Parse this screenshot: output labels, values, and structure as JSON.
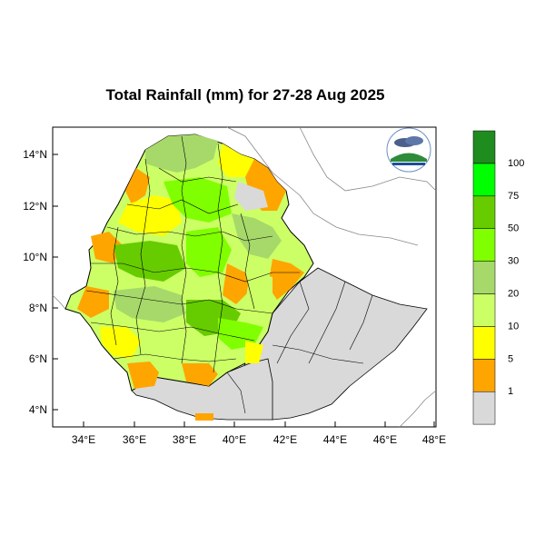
{
  "title": "Total Rainfall (mm) for 27-28 Aug 2025",
  "map": {
    "lon_range": [
      33,
      48.2
    ],
    "lat_range": [
      3.2,
      15
    ],
    "y_ticks": [
      "14°N",
      "12°N",
      "10°N",
      "8°N",
      "6°N",
      "4°N"
    ],
    "x_ticks": [
      "34°E",
      "36°E",
      "38°E",
      "40°E",
      "42°E",
      "44°E",
      "46°E",
      "48°E"
    ]
  },
  "legend": {
    "labels": [
      "1",
      "5",
      "10",
      "20",
      "30",
      "50",
      "75",
      "100"
    ],
    "colors": [
      "#d9d9d9",
      "#ffa500",
      "#ffff00",
      "#ccff66",
      "#a6d96a",
      "#80ff00",
      "#66cc00",
      "#00ff00",
      "#1f8c1f"
    ]
  },
  "colors": {
    "outside": "#d9d9d9",
    "orange": "#ffa500",
    "yellow": "#ffff00",
    "light_green": "#ccff66",
    "mid_green": "#a6d96a",
    "green": "#80ff00",
    "dark_green": "#66cc00",
    "boundary": "#000000",
    "neighbor": "#888888"
  },
  "logo": {
    "icon": "meteorology-agency-logo"
  }
}
